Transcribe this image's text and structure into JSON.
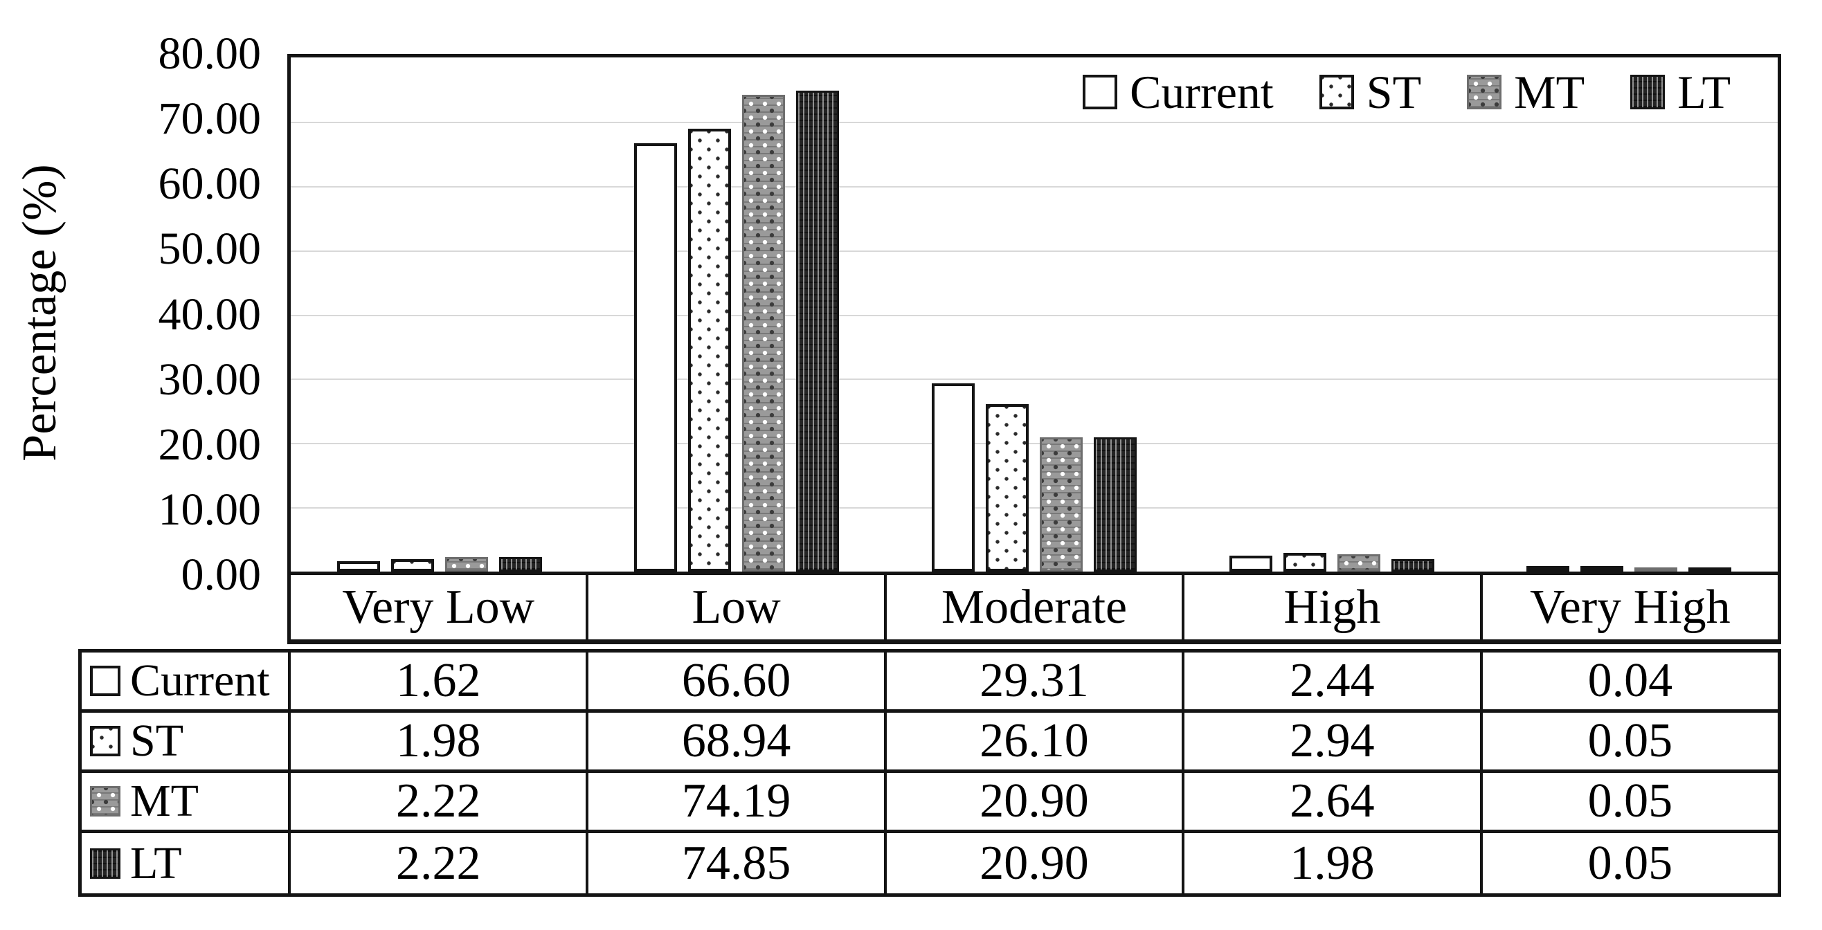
{
  "chart_data": {
    "type": "bar",
    "title": "",
    "ylabel": "Percentage (%)",
    "xlabel": "",
    "ylim": [
      0,
      80
    ],
    "ytick_step": 10,
    "ytick_labels": [
      "80.00",
      "70.00",
      "60.00",
      "50.00",
      "40.00",
      "30.00",
      "20.00",
      "10.00",
      "0.00"
    ],
    "grid": true,
    "legend_position": "top-right-inside",
    "categories": [
      "Very Low",
      "Low",
      "Moderate",
      "High",
      "Very High"
    ],
    "series": [
      {
        "name": "Current",
        "pattern": "current",
        "values": [
          1.62,
          66.6,
          29.31,
          2.44,
          0.04
        ]
      },
      {
        "name": "ST",
        "pattern": "st",
        "values": [
          1.98,
          68.94,
          26.1,
          2.94,
          0.05
        ]
      },
      {
        "name": "MT",
        "pattern": "mt",
        "values": [
          2.22,
          74.19,
          20.9,
          2.64,
          0.05
        ]
      },
      {
        "name": "LT",
        "pattern": "lt",
        "values": [
          2.22,
          74.85,
          20.9,
          1.98,
          0.05
        ]
      }
    ],
    "series_colors": {
      "current_fill": "#ffffff",
      "st_fill": "#ffffff",
      "mt_fill": "#9a9a9a",
      "lt_fill": "#242424",
      "outline": "#141414",
      "gridline": "#d8d8d8"
    }
  },
  "table": {
    "column_headers": [
      "Very Low",
      "Low",
      "Moderate",
      "High",
      "Very High"
    ],
    "rows": [
      {
        "label": "Current",
        "pattern": "current",
        "values": [
          "1.62",
          "66.60",
          "29.31",
          "2.44",
          "0.04"
        ]
      },
      {
        "label": "ST",
        "pattern": "st",
        "values": [
          "1.98",
          "68.94",
          "26.10",
          "2.94",
          "0.05"
        ]
      },
      {
        "label": "MT",
        "pattern": "mt",
        "values": [
          "2.22",
          "74.19",
          "20.90",
          "2.64",
          "0.05"
        ]
      },
      {
        "label": "LT",
        "pattern": "lt",
        "values": [
          "2.22",
          "74.85",
          "20.90",
          "1.98",
          "0.05"
        ]
      }
    ]
  }
}
